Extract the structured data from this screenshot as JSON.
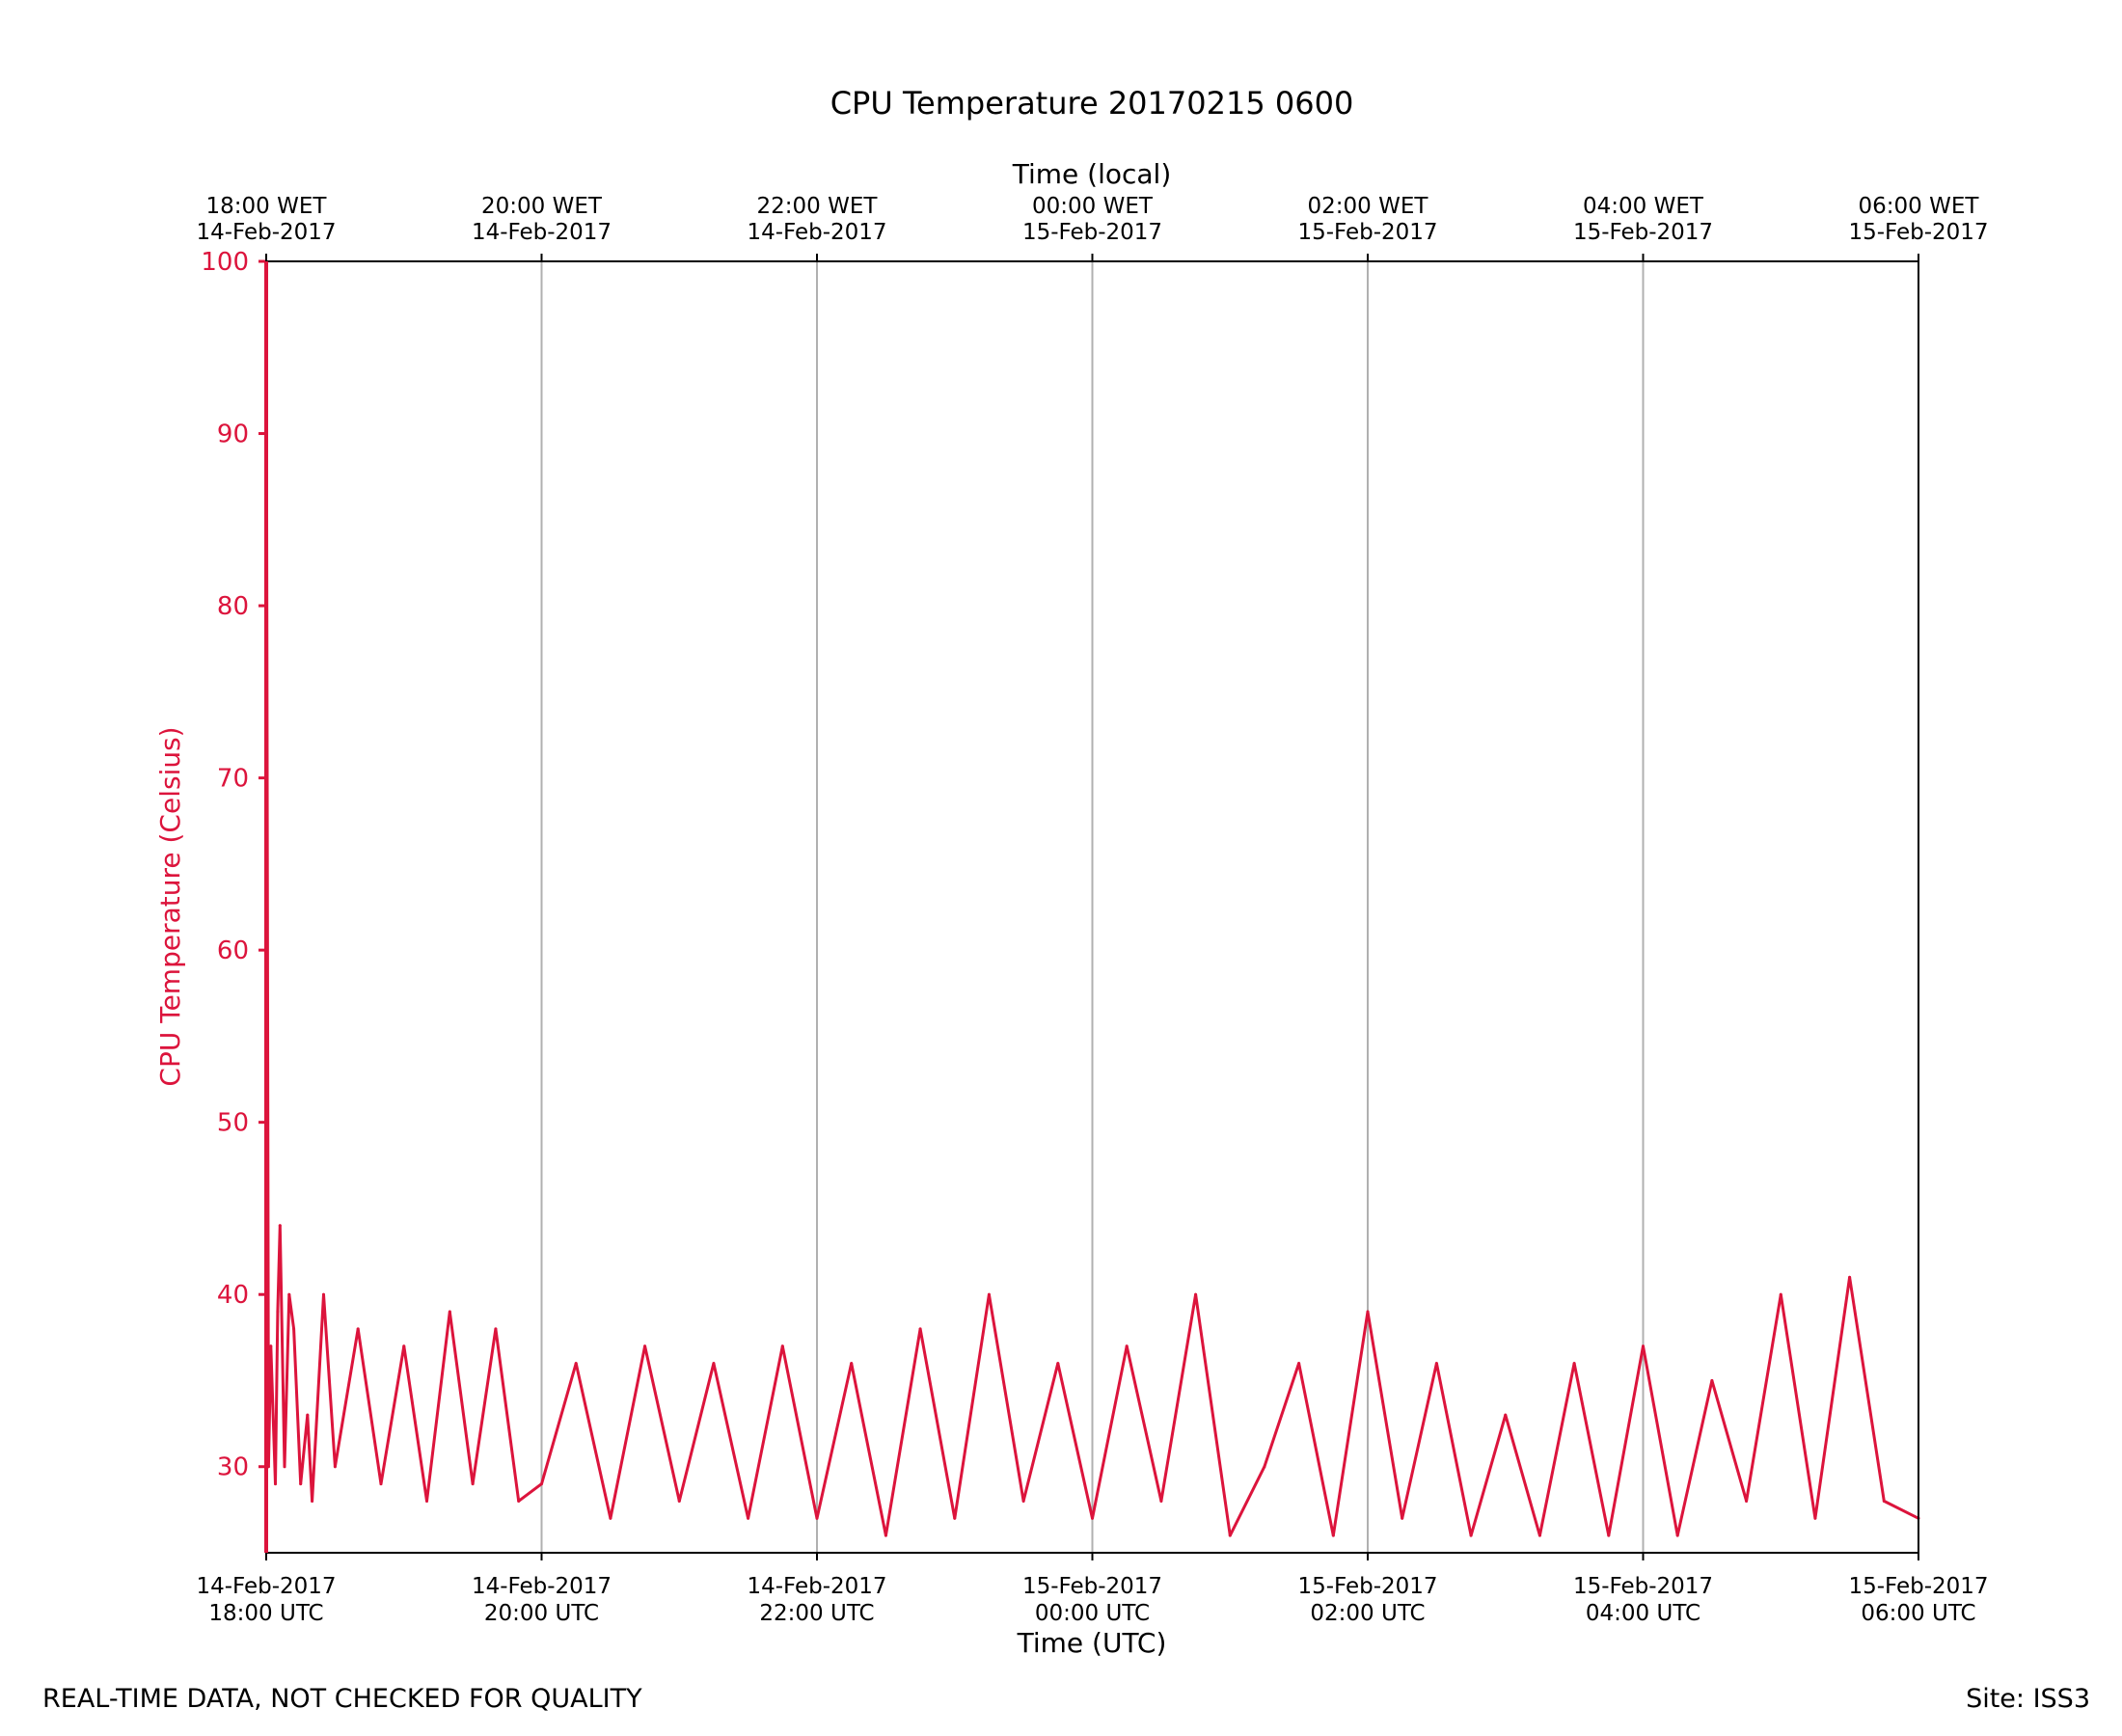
{
  "chart_data": {
    "type": "line",
    "title": "CPU Temperature 20170215 0600",
    "xlabel": "Time (UTC)",
    "x2label": "Time (local)",
    "ylabel": "CPU Temperature (Celsius)",
    "ylim": [
      25,
      100
    ],
    "xlim": [
      "2017-02-14 18:00",
      "2017-02-15 06:00"
    ],
    "y_ticks": [
      30,
      40,
      50,
      60,
      70,
      80,
      90,
      100
    ],
    "x_ticks_bottom": [
      {
        "date": "14-Feb-2017",
        "time": "18:00 UTC"
      },
      {
        "date": "14-Feb-2017",
        "time": "20:00 UTC"
      },
      {
        "date": "14-Feb-2017",
        "time": "22:00 UTC"
      },
      {
        "date": "15-Feb-2017",
        "time": "00:00 UTC"
      },
      {
        "date": "15-Feb-2017",
        "time": "02:00 UTC"
      },
      {
        "date": "15-Feb-2017",
        "time": "04:00 UTC"
      },
      {
        "date": "15-Feb-2017",
        "time": "06:00 UTC"
      }
    ],
    "x_ticks_top": [
      {
        "time": "18:00 WET",
        "date": "14-Feb-2017"
      },
      {
        "time": "20:00 WET",
        "date": "14-Feb-2017"
      },
      {
        "time": "22:00 WET",
        "date": "14-Feb-2017"
      },
      {
        "time": "00:00 WET",
        "date": "15-Feb-2017"
      },
      {
        "time": "02:00 WET",
        "date": "15-Feb-2017"
      },
      {
        "time": "04:00 WET",
        "date": "15-Feb-2017"
      },
      {
        "time": "06:00 WET",
        "date": "15-Feb-2017"
      }
    ],
    "grid": "vertical",
    "series": [
      {
        "color": "#dc143c",
        "x": [
          "2017-02-14 18:00",
          "2017-02-14 18:01",
          "2017-02-14 18:02",
          "2017-02-14 18:04",
          "2017-02-14 18:05",
          "2017-02-14 18:06",
          "2017-02-14 18:08",
          "2017-02-14 18:10",
          "2017-02-14 18:12",
          "2017-02-14 18:15",
          "2017-02-14 18:18",
          "2017-02-14 18:20",
          "2017-02-14 18:25",
          "2017-02-14 18:30",
          "2017-02-14 18:40",
          "2017-02-14 18:50",
          "2017-02-14 19:00",
          "2017-02-14 19:10",
          "2017-02-14 19:20",
          "2017-02-14 19:30",
          "2017-02-14 19:40",
          "2017-02-14 19:50",
          "2017-02-14 20:00",
          "2017-02-14 20:15",
          "2017-02-14 20:30",
          "2017-02-14 20:45",
          "2017-02-14 21:00",
          "2017-02-14 21:15",
          "2017-02-14 21:30",
          "2017-02-14 21:45",
          "2017-02-14 22:00",
          "2017-02-14 22:15",
          "2017-02-14 22:30",
          "2017-02-14 22:45",
          "2017-02-14 23:00",
          "2017-02-14 23:15",
          "2017-02-14 23:30",
          "2017-02-14 23:45",
          "2017-02-15 00:00",
          "2017-02-15 00:15",
          "2017-02-15 00:30",
          "2017-02-15 00:45",
          "2017-02-15 01:00",
          "2017-02-15 01:15",
          "2017-02-15 01:30",
          "2017-02-15 01:45",
          "2017-02-15 02:00",
          "2017-02-15 02:15",
          "2017-02-15 02:30",
          "2017-02-15 02:45",
          "2017-02-15 03:00",
          "2017-02-15 03:15",
          "2017-02-15 03:30",
          "2017-02-15 03:45",
          "2017-02-15 04:00",
          "2017-02-15 04:15",
          "2017-02-15 04:30",
          "2017-02-15 04:45",
          "2017-02-15 05:00",
          "2017-02-15 05:15",
          "2017-02-15 05:30",
          "2017-02-15 05:45",
          "2017-02-15 06:00"
        ],
        "y": [
          100,
          30,
          37,
          29,
          39,
          44,
          30,
          40,
          38,
          29,
          33,
          28,
          40,
          30,
          38,
          29,
          37,
          28,
          39,
          29,
          38,
          28,
          29,
          36,
          27,
          37,
          28,
          36,
          27,
          37,
          27,
          36,
          26,
          38,
          27,
          40,
          28,
          36,
          27,
          37,
          28,
          40,
          26,
          30,
          36,
          26,
          39,
          27,
          36,
          26,
          33,
          26,
          36,
          26,
          37,
          26,
          35,
          28,
          40,
          27,
          41,
          28,
          27
        ]
      }
    ]
  },
  "footer": {
    "left_note": "REAL-TIME DATA, NOT CHECKED FOR QUALITY",
    "site": "Site: ISS3"
  }
}
